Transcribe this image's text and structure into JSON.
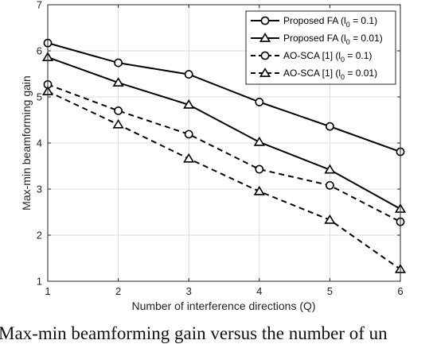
{
  "chart_data": {
    "type": "line",
    "title": "",
    "xlabel": "Number of interference directions (Q)",
    "ylabel": "Max-min beamforming gain",
    "xlim": [
      1,
      6
    ],
    "ylim": [
      1,
      7
    ],
    "x": [
      1,
      2,
      3,
      4,
      5,
      6
    ],
    "xticks": [
      "1",
      "2",
      "3",
      "4",
      "5",
      "6"
    ],
    "yticks": [
      "1",
      "2",
      "3",
      "4",
      "5",
      "6",
      "7"
    ],
    "grid": true,
    "legend_position": "top-right",
    "series": [
      {
        "name": "Proposed FA (l₀ = 0.1)",
        "legend_main": "Proposed FA (l",
        "legend_sub": "0",
        "legend_tail": " = 0.1)",
        "values": [
          6.17,
          5.74,
          5.49,
          4.89,
          4.36,
          3.81
        ],
        "marker": "circle",
        "linestyle": "solid",
        "color": "#000000"
      },
      {
        "name": "Proposed FA (l₀ = 0.01)",
        "legend_main": "Proposed FA (l",
        "legend_sub": "0",
        "legend_tail": " = 0.01)",
        "values": [
          5.86,
          5.31,
          4.83,
          4.02,
          3.42,
          2.57
        ],
        "marker": "triangle",
        "linestyle": "solid",
        "color": "#000000"
      },
      {
        "name": "AO-SCA [1] (l₀ = 0.1)",
        "legend_main": "AO-SCA [1] (l",
        "legend_sub": "0",
        "legend_tail": " = 0.1)",
        "values": [
          5.27,
          4.7,
          4.19,
          3.43,
          3.08,
          2.29
        ],
        "marker": "circle",
        "linestyle": "dashed",
        "color": "#000000"
      },
      {
        "name": "AO-SCA [1] (l₀ = 0.01)",
        "legend_main": "AO-SCA [1] (l",
        "legend_sub": "0",
        "legend_tail": " = 0.01)",
        "values": [
          5.12,
          4.4,
          3.66,
          2.95,
          2.33,
          1.26
        ],
        "marker": "triangle",
        "linestyle": "dashed",
        "color": "#000000"
      }
    ]
  },
  "caption": "Max-min beamforming gain versus the number of un"
}
